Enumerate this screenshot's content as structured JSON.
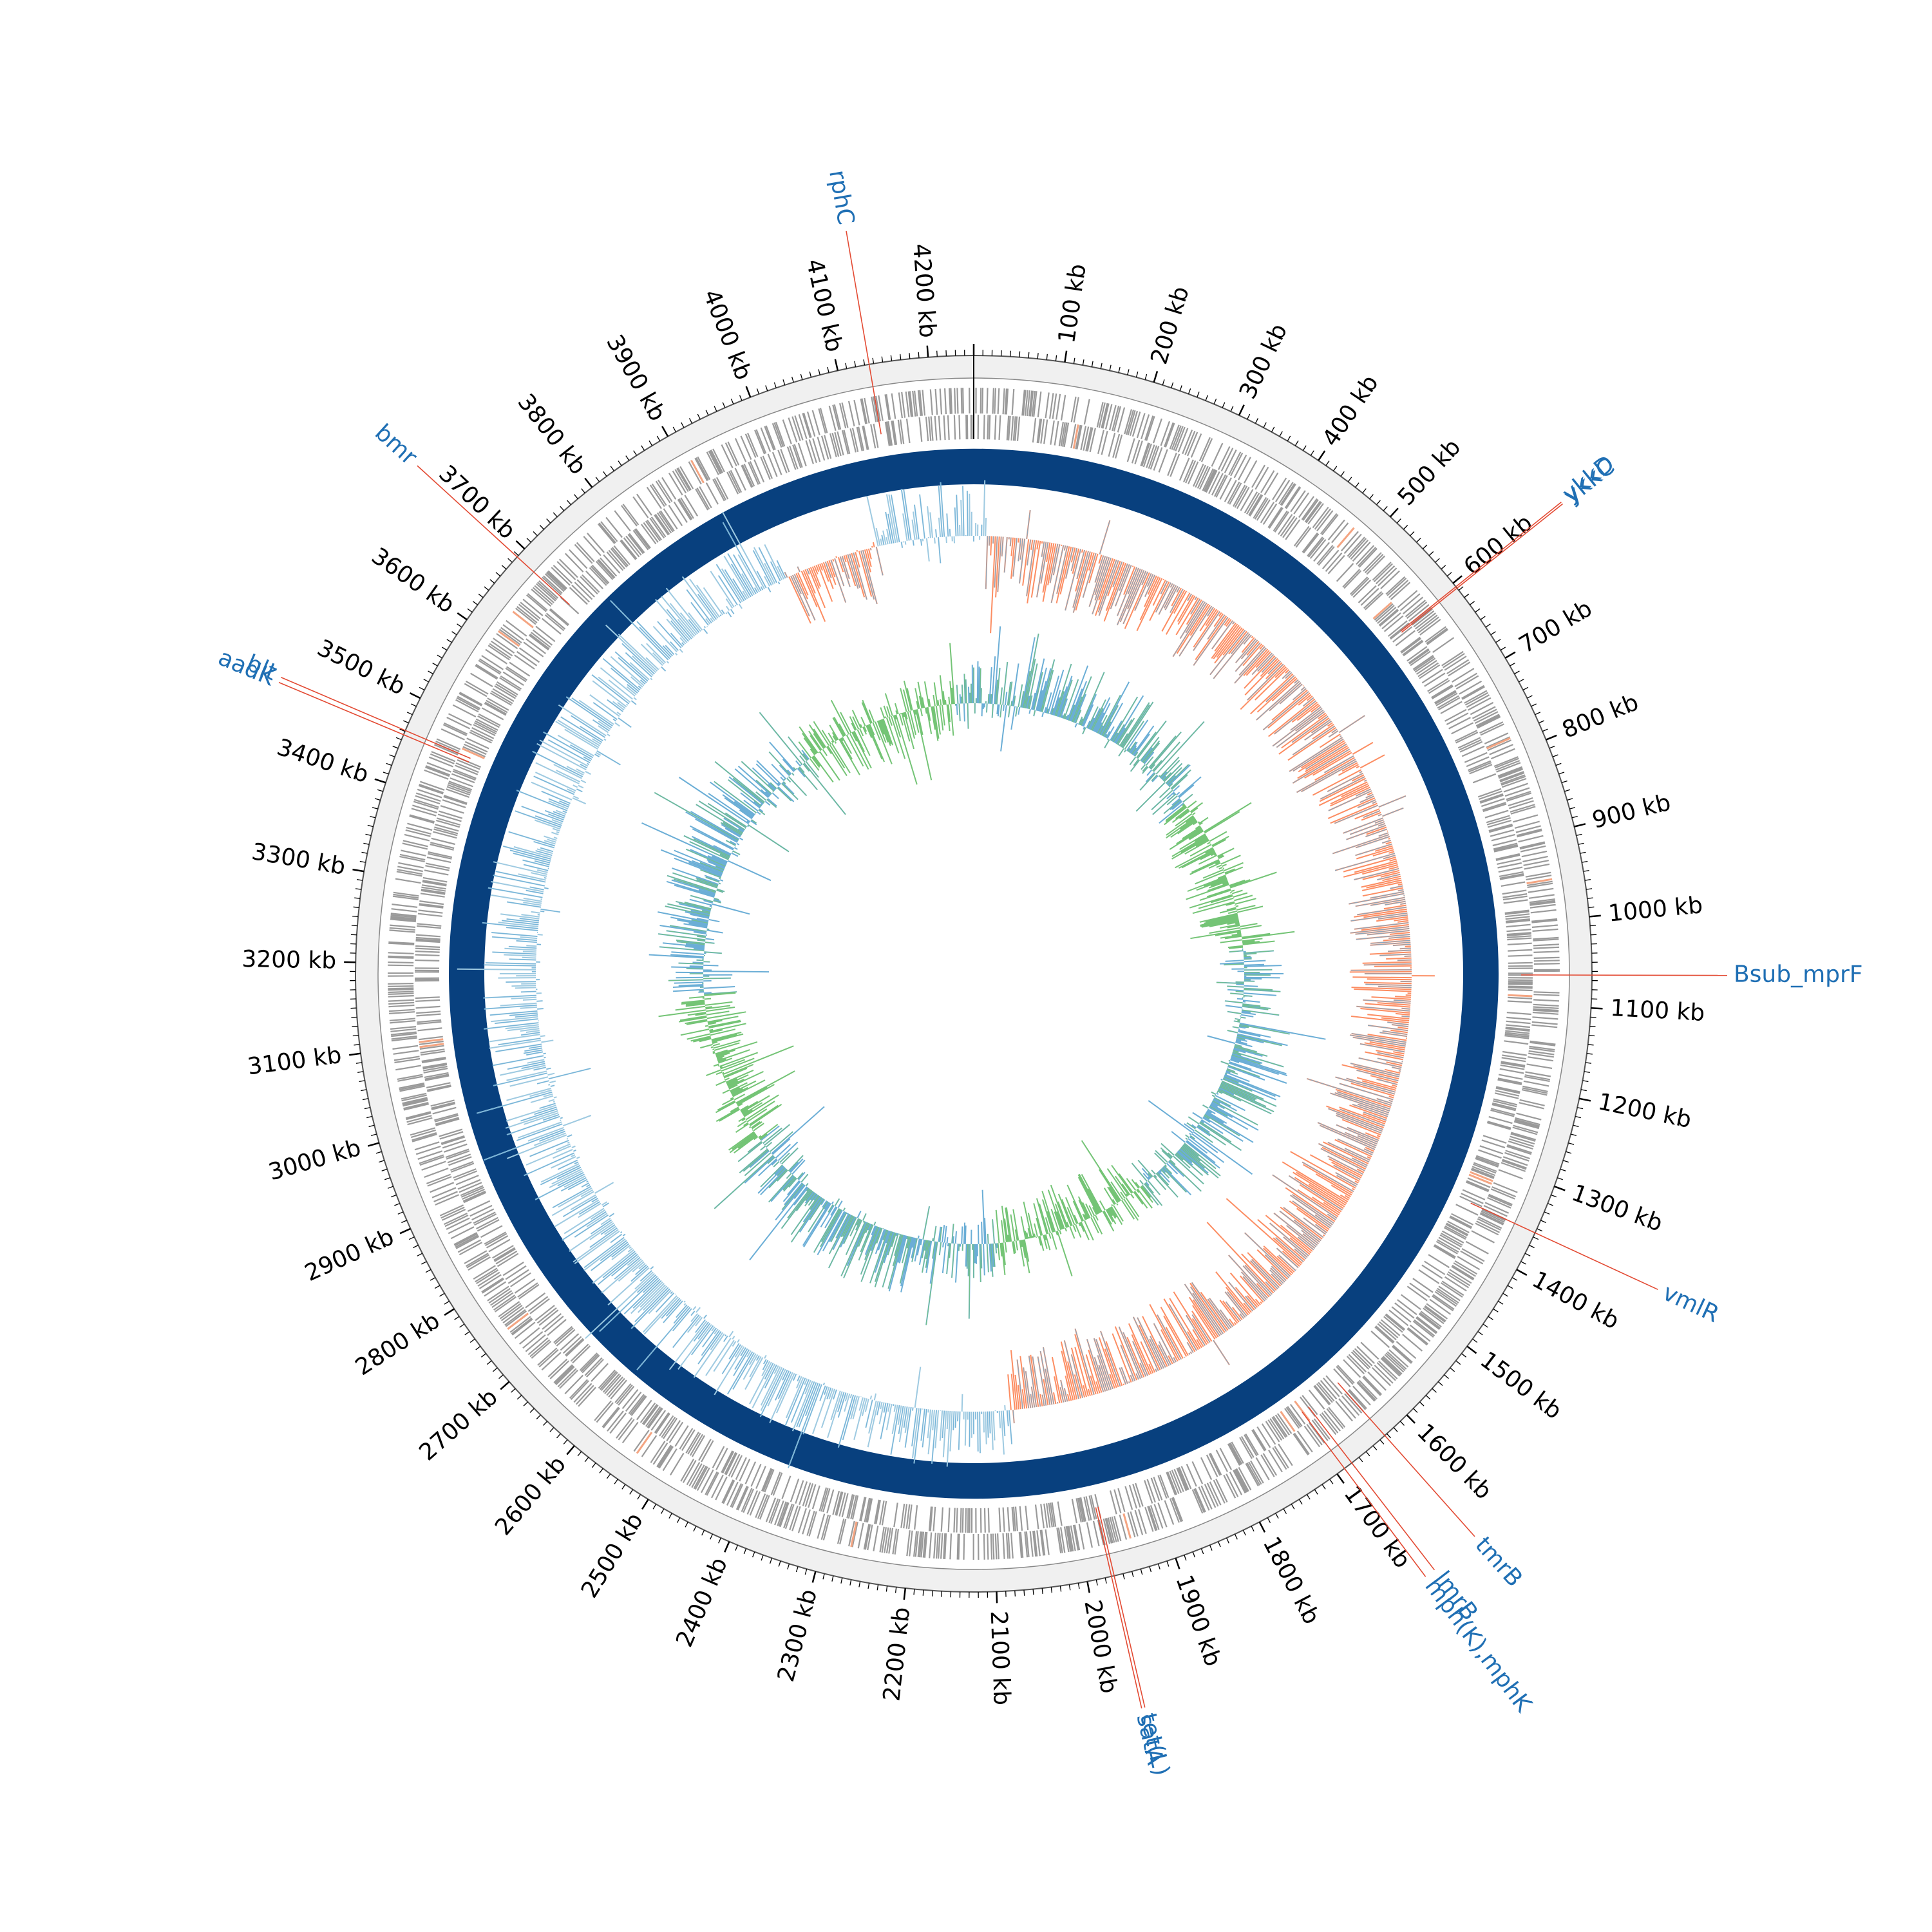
{
  "map": {
    "genome_length_kb": 4250,
    "axis_unit": "kb",
    "tick_labels": [
      "100 kb",
      "200 kb",
      "300 kb",
      "400 kb",
      "500 kb",
      "600 kb",
      "700 kb",
      "800 kb",
      "900 kb",
      "1000 kb",
      "1100 kb",
      "1200 kb",
      "1300 kb",
      "1400 kb",
      "1500 kb",
      "1600 kb",
      "1700 kb",
      "1800 kb",
      "1900 kb",
      "2000 kb",
      "2100 kb",
      "2200 kb",
      "2300 kb",
      "2400 kb",
      "2500 kb",
      "2600 kb",
      "2700 kb",
      "2800 kb",
      "2900 kb",
      "3000 kb",
      "3100 kb",
      "3200 kb",
      "3300 kb",
      "3400 kb",
      "3500 kb",
      "3600 kb",
      "3700 kb",
      "3800 kb",
      "3900 kb",
      "4000 kb",
      "4100 kb",
      "4200 kb"
    ],
    "tick_values_kb": [
      100,
      200,
      300,
      400,
      500,
      600,
      700,
      800,
      900,
      1000,
      1100,
      1200,
      1300,
      1400,
      1500,
      1600,
      1700,
      1800,
      1900,
      2000,
      2100,
      2200,
      2300,
      2400,
      2500,
      2600,
      2700,
      2800,
      2900,
      3000,
      3100,
      3200,
      3300,
      3400,
      3500,
      3600,
      3700,
      3800,
      3900,
      4000,
      4100,
      4200
    ],
    "gene_annotations": [
      {
        "name": "rphC",
        "position_kb": 4135,
        "side": "left"
      },
      {
        "name": "ykkD",
        "position_kb": 605,
        "side": "right"
      },
      {
        "name": "ykkC",
        "position_kb": 607,
        "side": "right"
      },
      {
        "name": "Bsub_mprF",
        "position_kb": 1064,
        "side": "right"
      },
      {
        "name": "vmlR",
        "position_kb": 1355,
        "side": "right"
      },
      {
        "name": "tmrB",
        "position_kb": 1633,
        "side": "right"
      },
      {
        "name": "lmrB",
        "position_kb": 1680,
        "side": "right"
      },
      {
        "name": "mph(K),mphK",
        "position_kb": 1690,
        "side": "right"
      },
      {
        "name": "tet(L)",
        "position_kb": 1970,
        "side": "right"
      },
      {
        "name": "satA",
        "position_kb": 1973,
        "side": "right"
      },
      {
        "name": "blt",
        "position_kb": 3461,
        "side": "left"
      },
      {
        "name": "aadK",
        "position_kb": 3456,
        "side": "left"
      },
      {
        "name": "bmr",
        "position_kb": 3688,
        "side": "left"
      }
    ],
    "colors": {
      "outer_ring": "#f0f0f0",
      "genes": "#9a9a9a",
      "gene_highlight": "#f4a582",
      "backbone": "#08407e",
      "gc_skew_negative": "#fc8d62",
      "gc_skew_positive": "#9ecae1",
      "gc_skew_line": "#6baed6",
      "gc_content": "#74c476",
      "annotation_line": "#e34a33",
      "annotation_text": "#1f6fb4"
    }
  }
}
